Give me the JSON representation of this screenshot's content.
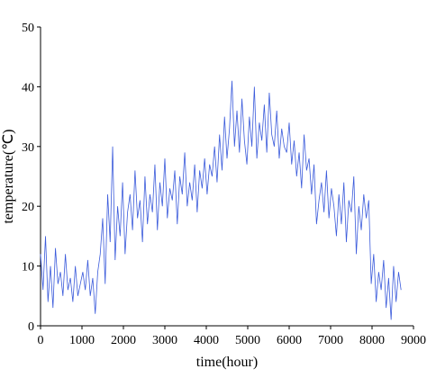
{
  "chart_data": {
    "type": "line",
    "xlabel": "time(hour)",
    "ylabel": "temperature(℃)",
    "x": [
      0,
      60,
      120,
      180,
      240,
      300,
      360,
      420,
      480,
      540,
      600,
      660,
      720,
      780,
      840,
      900,
      960,
      1020,
      1080,
      1140,
      1200,
      1260,
      1320,
      1380,
      1440,
      1500,
      1560,
      1620,
      1680,
      1740,
      1800,
      1860,
      1920,
      1980,
      2040,
      2100,
      2160,
      2220,
      2280,
      2340,
      2400,
      2460,
      2520,
      2580,
      2640,
      2700,
      2760,
      2820,
      2880,
      2940,
      3000,
      3060,
      3120,
      3180,
      3240,
      3300,
      3360,
      3420,
      3480,
      3540,
      3600,
      3660,
      3720,
      3780,
      3840,
      3900,
      3960,
      4020,
      4080,
      4140,
      4200,
      4260,
      4320,
      4380,
      4440,
      4500,
      4560,
      4620,
      4680,
      4740,
      4800,
      4860,
      4920,
      4980,
      5040,
      5100,
      5160,
      5220,
      5280,
      5340,
      5400,
      5460,
      5520,
      5580,
      5640,
      5700,
      5760,
      5820,
      5880,
      5940,
      6000,
      6060,
      6120,
      6180,
      6240,
      6300,
      6360,
      6420,
      6480,
      6540,
      6600,
      6660,
      6720,
      6780,
      6840,
      6900,
      6960,
      7020,
      7080,
      7140,
      7200,
      7260,
      7320,
      7380,
      7440,
      7500,
      7560,
      7620,
      7680,
      7740,
      7800,
      7860,
      7920,
      7980,
      8040,
      8100,
      8160,
      8220,
      8280,
      8340,
      8400,
      8460,
      8520,
      8580,
      8640,
      8700
    ],
    "series": [
      {
        "name": "temperature",
        "color": "#3b5bdb",
        "values": [
          12,
          6,
          15,
          4,
          10,
          3,
          13,
          7,
          9,
          5,
          12,
          6,
          8,
          4,
          10,
          5,
          7,
          9,
          6,
          11,
          5,
          8,
          2,
          9,
          12,
          18,
          7,
          22,
          14,
          30,
          11,
          20,
          15,
          24,
          12,
          19,
          22,
          16,
          26,
          18,
          21,
          14,
          25,
          17,
          22,
          19,
          27,
          16,
          24,
          20,
          28,
          18,
          23,
          21,
          26,
          17,
          25,
          22,
          29,
          20,
          24,
          21,
          27,
          19,
          26,
          23,
          28,
          22,
          27,
          25,
          30,
          24,
          32,
          26,
          35,
          28,
          33,
          41,
          30,
          36,
          29,
          38,
          31,
          27,
          35,
          30,
          40,
          28,
          34,
          31,
          37,
          29,
          39,
          32,
          30,
          36,
          28,
          33,
          30,
          29,
          34,
          27,
          31,
          25,
          29,
          23,
          32,
          26,
          28,
          22,
          27,
          17,
          21,
          24,
          19,
          26,
          18,
          23,
          20,
          15,
          22,
          17,
          24,
          14,
          21,
          19,
          25,
          12,
          20,
          16,
          22,
          18,
          21,
          7,
          12,
          4,
          9,
          6,
          11,
          3,
          8,
          1,
          10,
          4,
          9,
          6
        ]
      }
    ],
    "xlim": [
      0,
      9000
    ],
    "xticks": [
      0,
      1000,
      2000,
      3000,
      4000,
      5000,
      6000,
      7000,
      8000,
      9000
    ],
    "ylim": [
      0,
      50
    ],
    "yticks": [
      0,
      10,
      20,
      30,
      40,
      50
    ]
  }
}
